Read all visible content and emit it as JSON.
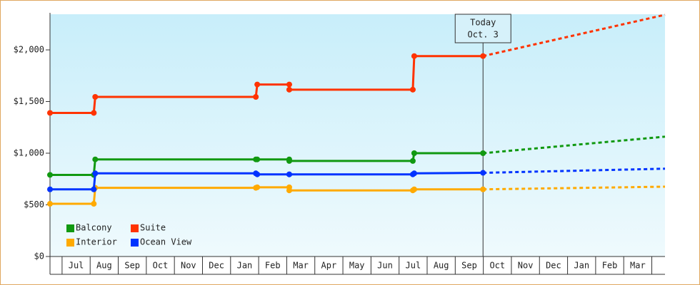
{
  "chart_data": {
    "type": "line",
    "x": [
      -0.43,
      1.13,
      1.18,
      6.9,
      6.95,
      8.09,
      8.09,
      12.49,
      12.54,
      14.99
    ],
    "forecast_x": [
      14.99,
      21.47
    ],
    "series": [
      {
        "name": "Balcony",
        "color": "#119911",
        "values": [
          790,
          790,
          940,
          940,
          940,
          940,
          925,
          925,
          1000,
          1000
        ],
        "forecast": [
          1000,
          1160
        ]
      },
      {
        "name": "Suite",
        "color": "#ff3300",
        "values": [
          1390,
          1390,
          1545,
          1545,
          1665,
          1665,
          1615,
          1615,
          1940,
          1940
        ],
        "forecast": [
          1940,
          2340
        ]
      },
      {
        "name": "Interior",
        "color": "#ffaa00",
        "values": [
          510,
          510,
          665,
          665,
          670,
          670,
          640,
          640,
          650,
          650
        ],
        "forecast": [
          650,
          676
        ]
      },
      {
        "name": "Ocean View",
        "color": "#0033ff",
        "values": [
          650,
          650,
          805,
          805,
          795,
          795,
          795,
          795,
          805,
          810
        ],
        "forecast": [
          810,
          850
        ]
      }
    ],
    "xlim": [
      -0.43,
      21.47
    ],
    "xticks": [
      {
        "value": 0.5,
        "label": "Jul"
      },
      {
        "value": 1.5,
        "label": "Aug"
      },
      {
        "value": 2.5,
        "label": "Sep"
      },
      {
        "value": 3.5,
        "label": "Oct"
      },
      {
        "value": 4.5,
        "label": "Nov"
      },
      {
        "value": 5.5,
        "label": "Dec"
      },
      {
        "value": 6.5,
        "label": "Jan"
      },
      {
        "value": 7.5,
        "label": "Feb"
      },
      {
        "value": 8.5,
        "label": "Mar"
      },
      {
        "value": 9.5,
        "label": "Apr"
      },
      {
        "value": 10.5,
        "label": "May"
      },
      {
        "value": 11.5,
        "label": "Jun"
      },
      {
        "value": 12.5,
        "label": "Jul"
      },
      {
        "value": 13.5,
        "label": "Aug"
      },
      {
        "value": 14.5,
        "label": "Sep"
      },
      {
        "value": 15.5,
        "label": "Oct"
      },
      {
        "value": 16.5,
        "label": "Nov"
      },
      {
        "value": 17.5,
        "label": "Dec"
      },
      {
        "value": 18.5,
        "label": "Jan"
      },
      {
        "value": 19.5,
        "label": "Feb"
      },
      {
        "value": 20.5,
        "label": "Mar"
      }
    ],
    "ylim": [
      0,
      2345
    ],
    "yticks": [
      {
        "value": 0,
        "label": "$0"
      },
      {
        "value": 500,
        "label": "$500"
      },
      {
        "value": 1000,
        "label": "$1,000"
      },
      {
        "value": 1500,
        "label": "$1,500"
      },
      {
        "value": 2000,
        "label": "$2,000"
      }
    ],
    "annotation": {
      "x": 14.99,
      "lines": [
        "Today",
        "Oct. 3"
      ]
    },
    "legend": "lower left"
  }
}
